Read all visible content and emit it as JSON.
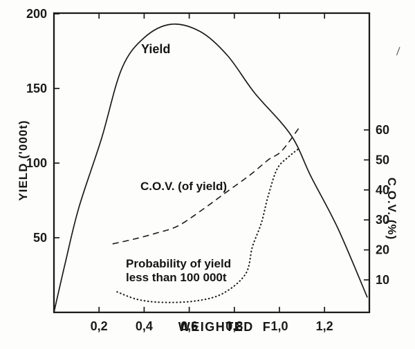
{
  "figure": {
    "background": "#fdfdfb",
    "ink": "#1a1a1a"
  },
  "chart_data": {
    "type": "line",
    "title": "",
    "grid": false,
    "legend": "none (curves labeled inline)",
    "x_axis": {
      "label": "WEIGHTED  F",
      "range": [
        0,
        1.4
      ],
      "ticks": [
        0.2,
        0.4,
        0.6,
        0.8,
        1.0,
        1.2
      ],
      "tick_labels": [
        "0,2",
        "0,4",
        "0,6",
        "0,8",
        "1,0",
        "1,2"
      ]
    },
    "y_left_axis": {
      "label": "YIELD ('000t)",
      "range": [
        0,
        200
      ],
      "ticks": [
        50,
        100,
        150,
        200
      ],
      "tick_labels": [
        "50",
        "100",
        "150",
        "200"
      ]
    },
    "y_right_axis": {
      "label": "C.O.V. (%)",
      "range": [
        0,
        65
      ],
      "ticks": [
        10,
        20,
        30,
        40,
        50,
        60
      ],
      "tick_labels": [
        "10",
        "20",
        "30",
        "40",
        "50",
        "60"
      ]
    },
    "series": [
      {
        "name": "yield",
        "label": "Yield",
        "axis": "left",
        "style": "solid",
        "points": [
          [
            0.0,
            0
          ],
          [
            0.05,
            33
          ],
          [
            0.11,
            70
          ],
          [
            0.21,
            116
          ],
          [
            0.3,
            163
          ],
          [
            0.4,
            184
          ],
          [
            0.52,
            193
          ],
          [
            0.65,
            188
          ],
          [
            0.77,
            172
          ],
          [
            0.89,
            147
          ],
          [
            1.05,
            119
          ],
          [
            1.14,
            91
          ],
          [
            1.26,
            56
          ],
          [
            1.39,
            10
          ]
        ]
      },
      {
        "name": "cov-of-yield",
        "label": "C.O.V. (of yield)",
        "axis": "right",
        "style": "dashed",
        "points": [
          [
            0.26,
            22
          ],
          [
            0.35,
            23.5
          ],
          [
            0.45,
            25.5
          ],
          [
            0.55,
            28
          ],
          [
            0.66,
            33.5
          ],
          [
            0.76,
            39
          ],
          [
            0.87,
            45
          ],
          [
            0.95,
            50
          ],
          [
            1.01,
            53
          ],
          [
            1.09,
            61
          ]
        ]
      },
      {
        "name": "probability-yield-less-100000t",
        "label_line1": "Probability of yield",
        "label_line2": "less than 100 000t",
        "axis": "right",
        "style": "dotted",
        "points": [
          [
            0.28,
            6
          ],
          [
            0.37,
            3.5
          ],
          [
            0.48,
            2.5
          ],
          [
            0.63,
            3
          ],
          [
            0.75,
            5.5
          ],
          [
            0.85,
            12
          ],
          [
            0.88,
            21
          ],
          [
            0.92,
            29
          ],
          [
            0.95,
            38
          ],
          [
            0.99,
            47
          ],
          [
            1.04,
            51
          ],
          [
            1.09,
            54
          ]
        ]
      }
    ]
  }
}
